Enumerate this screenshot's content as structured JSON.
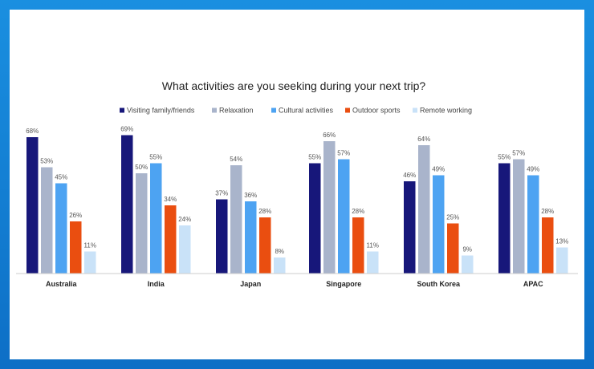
{
  "chart_data": {
    "type": "bar",
    "title": "What activities are you seeking during your next trip?",
    "categories": [
      "Australia",
      "India",
      "Japan",
      "Singapore",
      "South Korea",
      "APAC"
    ],
    "series": [
      {
        "name": "Visiting family/friends",
        "color": "#17177a",
        "values": [
          68,
          69,
          37,
          55,
          46,
          55
        ]
      },
      {
        "name": "Relaxation",
        "color": "#a9b4cb",
        "values": [
          53,
          50,
          54,
          66,
          64,
          57
        ]
      },
      {
        "name": "Cultural activities",
        "color": "#4da3f2",
        "values": [
          45,
          55,
          36,
          57,
          49,
          49
        ]
      },
      {
        "name": "Outdoor sports",
        "color": "#ea4e10",
        "values": [
          26,
          34,
          28,
          28,
          25,
          28
        ]
      },
      {
        "name": "Remote working",
        "color": "#c9e2f8",
        "values": [
          11,
          24,
          8,
          11,
          9,
          13
        ]
      }
    ],
    "value_suffix": "%",
    "xlabel": "",
    "ylabel": "",
    "ylim": [
      0,
      70
    ],
    "legend_position": "top",
    "grid": false
  }
}
